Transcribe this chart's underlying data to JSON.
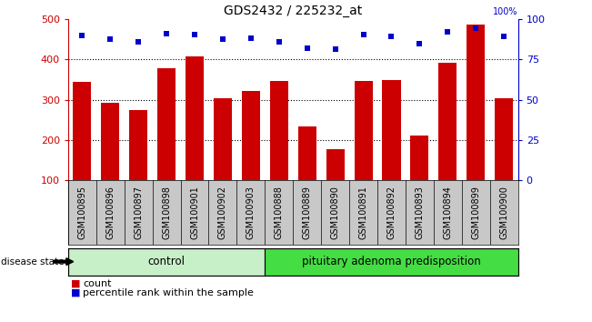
{
  "title": "GDS2432 / 225232_at",
  "samples": [
    "GSM100895",
    "GSM100896",
    "GSM100897",
    "GSM100898",
    "GSM100901",
    "GSM100902",
    "GSM100903",
    "GSM100888",
    "GSM100889",
    "GSM100890",
    "GSM100891",
    "GSM100892",
    "GSM100893",
    "GSM100894",
    "GSM100899",
    "GSM100900"
  ],
  "counts": [
    345,
    292,
    275,
    378,
    407,
    305,
    323,
    348,
    235,
    178,
    347,
    350,
    212,
    393,
    487,
    305
  ],
  "percentile_values": [
    460,
    450,
    445,
    465,
    462,
    450,
    452,
    443,
    428,
    427,
    462,
    458,
    440,
    468,
    478,
    458
  ],
  "group_labels": [
    "control",
    "pituitary adenoma predisposition"
  ],
  "control_count": 7,
  "ylim_left": [
    100,
    500
  ],
  "ylim_right": [
    0,
    100
  ],
  "yticks_left": [
    100,
    200,
    300,
    400,
    500
  ],
  "yticks_right": [
    0,
    25,
    50,
    75,
    100
  ],
  "bar_color": "#cc0000",
  "scatter_color": "#0000cc",
  "control_color": "#c8f0c8",
  "adenoma_color": "#44dd44",
  "right_axis_color": "#0000cc",
  "left_axis_color": "#cc0000",
  "title_fontsize": 10,
  "tick_label_fontsize": 7,
  "axis_tick_fontsize": 8,
  "legend_fontsize": 8
}
